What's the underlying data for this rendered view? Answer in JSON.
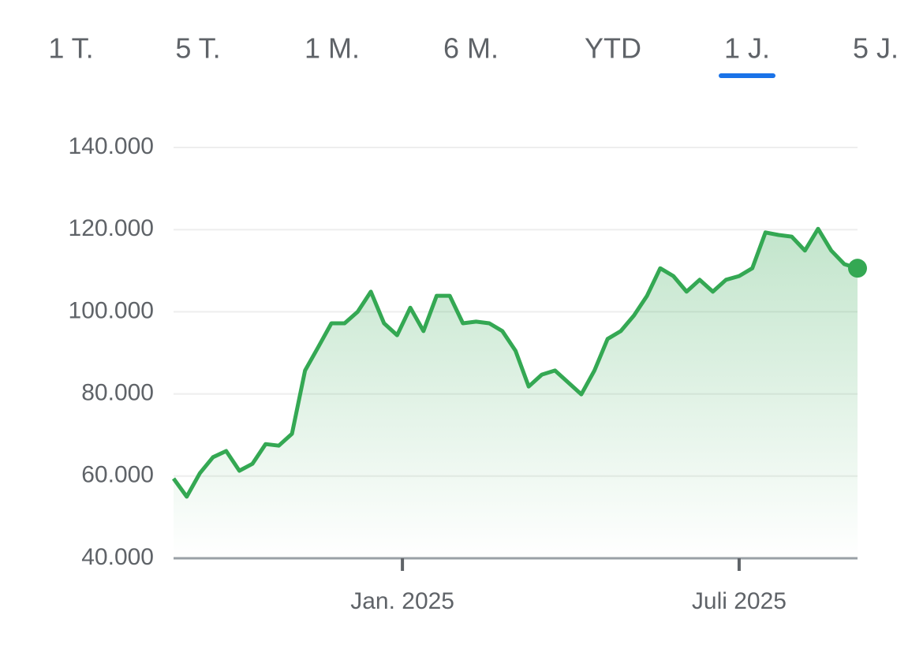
{
  "tabs": {
    "items": [
      "1 T.",
      "5 T.",
      "1 M.",
      "6 M.",
      "YTD",
      "1 J.",
      "5 J."
    ],
    "selected": 5,
    "selected_color": "#1a73e8"
  },
  "chart_data": {
    "type": "line",
    "x": [
      0,
      1,
      2,
      3,
      4,
      5,
      6,
      7,
      8,
      9,
      10,
      11,
      12,
      13,
      14,
      15,
      16,
      17,
      18,
      19,
      20,
      21,
      22,
      23,
      24,
      25,
      26,
      27,
      28,
      29,
      30,
      31,
      32,
      33,
      34,
      35,
      36,
      37,
      38,
      39,
      40,
      41,
      42,
      43,
      44,
      45,
      46,
      47,
      48,
      49,
      50,
      51,
      52
    ],
    "series": [
      {
        "color": "#34a853",
        "values": [
          59400,
          55000,
          60700,
          64600,
          66100,
          61300,
          63000,
          67800,
          67400,
          70300,
          85700,
          91400,
          97200,
          97200,
          100000,
          104900,
          97200,
          94300,
          101000,
          95300,
          103900,
          103900,
          97200,
          97600,
          97200,
          95300,
          90500,
          81800,
          84700,
          85700,
          82800,
          79900,
          85700,
          93400,
          95300,
          99100,
          103900,
          110600,
          108700,
          104900,
          107800,
          104900,
          107800,
          108700,
          110600,
          119300,
          118700,
          118300,
          114900,
          120200,
          114900,
          111600,
          110600
        ]
      }
    ],
    "xlim": [
      0,
      52
    ],
    "xticks": [
      {
        "value": 17.4,
        "label": "Jan. 2025"
      },
      {
        "value": 43,
        "label": "Juli 2025"
      }
    ],
    "ylim": [
      40000,
      140000
    ],
    "yticks": [
      {
        "value": 40000,
        "label": "40.000"
      },
      {
        "value": 60000,
        "label": "60.000"
      },
      {
        "value": 80000,
        "label": "80.000"
      },
      {
        "value": 100000,
        "label": "100.000"
      },
      {
        "value": 120000,
        "label": "120.000"
      },
      {
        "value": 140000,
        "label": "140.000"
      }
    ],
    "grid": true,
    "area": true
  }
}
